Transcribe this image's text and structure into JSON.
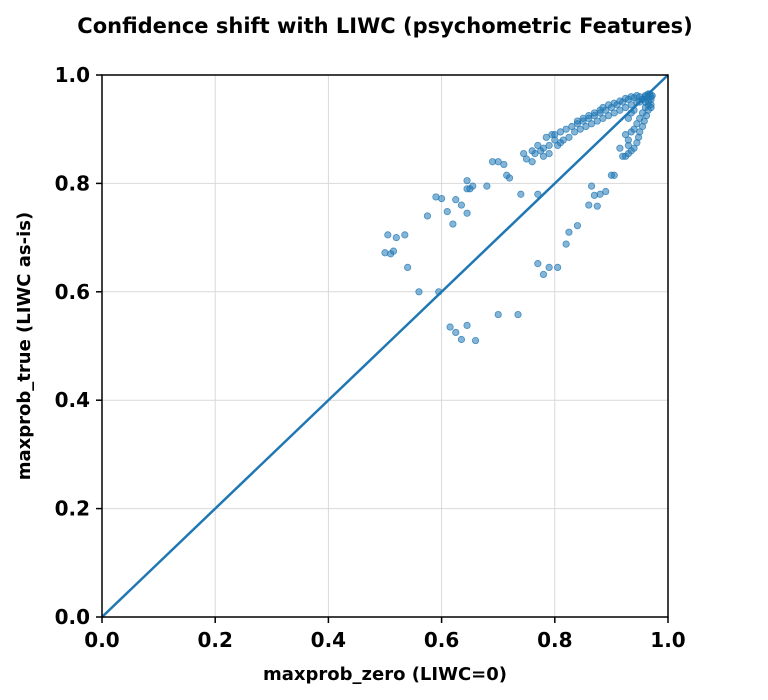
{
  "chart_data": {
    "type": "scatter",
    "title": "Confidence shift with LIWC (psychometric Features)",
    "xlabel": "maxprob_zero (LIWC=0)",
    "ylabel": "maxprob_true (LIWC as-is)",
    "xlim": [
      0,
      1
    ],
    "ylim": [
      0,
      1
    ],
    "x_ticks": [
      "0.0",
      "0.2",
      "0.4",
      "0.6",
      "0.8",
      "1.0"
    ],
    "y_ticks": [
      "0.0",
      "0.2",
      "0.4",
      "0.6",
      "0.8",
      "1.0"
    ],
    "grid": true,
    "point_color": "#1f77b4",
    "line_color": "#1f77b4",
    "reference_line": {
      "x": [
        0,
        1
      ],
      "y": [
        0,
        1
      ]
    },
    "series": [
      {
        "points": [
          [
            0.505,
            0.705
          ],
          [
            0.515,
            0.675
          ],
          [
            0.51,
            0.67
          ],
          [
            0.52,
            0.7
          ],
          [
            0.535,
            0.705
          ],
          [
            0.54,
            0.645
          ],
          [
            0.5,
            0.672
          ],
          [
            0.56,
            0.6
          ],
          [
            0.595,
            0.6
          ],
          [
            0.575,
            0.74
          ],
          [
            0.59,
            0.775
          ],
          [
            0.6,
            0.772
          ],
          [
            0.61,
            0.748
          ],
          [
            0.62,
            0.725
          ],
          [
            0.625,
            0.77
          ],
          [
            0.635,
            0.76
          ],
          [
            0.645,
            0.79
          ],
          [
            0.645,
            0.805
          ],
          [
            0.65,
            0.79
          ],
          [
            0.655,
            0.795
          ],
          [
            0.645,
            0.745
          ],
          [
            0.68,
            0.795
          ],
          [
            0.69,
            0.84
          ],
          [
            0.7,
            0.84
          ],
          [
            0.71,
            0.835
          ],
          [
            0.715,
            0.815
          ],
          [
            0.72,
            0.81
          ],
          [
            0.74,
            0.78
          ],
          [
            0.77,
            0.78
          ],
          [
            0.615,
            0.535
          ],
          [
            0.625,
            0.525
          ],
          [
            0.635,
            0.512
          ],
          [
            0.645,
            0.538
          ],
          [
            0.66,
            0.51
          ],
          [
            0.7,
            0.558
          ],
          [
            0.735,
            0.558
          ],
          [
            0.77,
            0.652
          ],
          [
            0.78,
            0.632
          ],
          [
            0.79,
            0.645
          ],
          [
            0.805,
            0.645
          ],
          [
            0.82,
            0.688
          ],
          [
            0.825,
            0.71
          ],
          [
            0.84,
            0.722
          ],
          [
            0.86,
            0.76
          ],
          [
            0.87,
            0.778
          ],
          [
            0.875,
            0.758
          ],
          [
            0.88,
            0.78
          ],
          [
            0.89,
            0.785
          ],
          [
            0.865,
            0.795
          ],
          [
            0.9,
            0.815
          ],
          [
            0.905,
            0.815
          ],
          [
            0.92,
            0.85
          ],
          [
            0.915,
            0.865
          ],
          [
            0.93,
            0.87
          ],
          [
            0.93,
            0.88
          ],
          [
            0.935,
            0.895
          ],
          [
            0.925,
            0.89
          ],
          [
            0.94,
            0.9
          ],
          [
            0.945,
            0.91
          ],
          [
            0.95,
            0.92
          ],
          [
            0.955,
            0.93
          ],
          [
            0.96,
            0.94
          ],
          [
            0.965,
            0.945
          ],
          [
            0.93,
            0.92
          ],
          [
            0.935,
            0.93
          ],
          [
            0.94,
            0.935
          ],
          [
            0.95,
            0.95
          ],
          [
            0.955,
            0.955
          ],
          [
            0.96,
            0.96
          ],
          [
            0.965,
            0.965
          ],
          [
            0.97,
            0.955
          ],
          [
            0.97,
            0.945
          ],
          [
            0.745,
            0.855
          ],
          [
            0.76,
            0.84
          ],
          [
            0.765,
            0.855
          ],
          [
            0.775,
            0.86
          ],
          [
            0.78,
            0.85
          ],
          [
            0.79,
            0.87
          ],
          [
            0.785,
            0.885
          ],
          [
            0.795,
            0.89
          ],
          [
            0.8,
            0.88
          ],
          [
            0.81,
            0.895
          ],
          [
            0.82,
            0.9
          ],
          [
            0.83,
            0.905
          ],
          [
            0.84,
            0.91
          ],
          [
            0.85,
            0.915
          ],
          [
            0.86,
            0.92
          ],
          [
            0.87,
            0.925
          ],
          [
            0.88,
            0.93
          ],
          [
            0.89,
            0.935
          ],
          [
            0.9,
            0.94
          ],
          [
            0.91,
            0.945
          ],
          [
            0.92,
            0.95
          ],
          [
            0.93,
            0.955
          ],
          [
            0.94,
            0.958
          ],
          [
            0.95,
            0.96
          ],
          [
            0.96,
            0.962
          ],
          [
            0.965,
            0.958
          ],
          [
            0.97,
            0.96
          ],
          [
            0.805,
            0.87
          ],
          [
            0.815,
            0.88
          ],
          [
            0.825,
            0.885
          ],
          [
            0.835,
            0.895
          ],
          [
            0.845,
            0.9
          ],
          [
            0.855,
            0.905
          ],
          [
            0.865,
            0.91
          ],
          [
            0.875,
            0.915
          ],
          [
            0.885,
            0.92
          ],
          [
            0.895,
            0.925
          ],
          [
            0.905,
            0.93
          ],
          [
            0.915,
            0.935
          ],
          [
            0.925,
            0.94
          ],
          [
            0.935,
            0.945
          ],
          [
            0.945,
            0.95
          ],
          [
            0.955,
            0.955
          ],
          [
            0.8,
            0.89
          ],
          [
            0.81,
            0.875
          ],
          [
            0.79,
            0.855
          ],
          [
            0.78,
            0.865
          ],
          [
            0.77,
            0.87
          ],
          [
            0.76,
            0.86
          ],
          [
            0.75,
            0.845
          ],
          [
            0.965,
            0.935
          ],
          [
            0.962,
            0.925
          ],
          [
            0.958,
            0.915
          ],
          [
            0.955,
            0.905
          ],
          [
            0.95,
            0.895
          ],
          [
            0.948,
            0.885
          ],
          [
            0.945,
            0.875
          ],
          [
            0.94,
            0.865
          ],
          [
            0.935,
            0.86
          ],
          [
            0.93,
            0.855
          ],
          [
            0.925,
            0.85
          ],
          [
            0.96,
            0.95
          ],
          [
            0.968,
            0.965
          ],
          [
            0.972,
            0.962
          ],
          [
            0.966,
            0.952
          ],
          [
            0.97,
            0.94
          ],
          [
            0.88,
            0.935
          ],
          [
            0.885,
            0.94
          ],
          [
            0.895,
            0.945
          ],
          [
            0.905,
            0.948
          ],
          [
            0.915,
            0.952
          ],
          [
            0.925,
            0.957
          ],
          [
            0.935,
            0.96
          ],
          [
            0.945,
            0.962
          ],
          [
            0.84,
            0.915
          ],
          [
            0.85,
            0.92
          ],
          [
            0.86,
            0.925
          ],
          [
            0.87,
            0.93
          ]
        ]
      }
    ]
  }
}
